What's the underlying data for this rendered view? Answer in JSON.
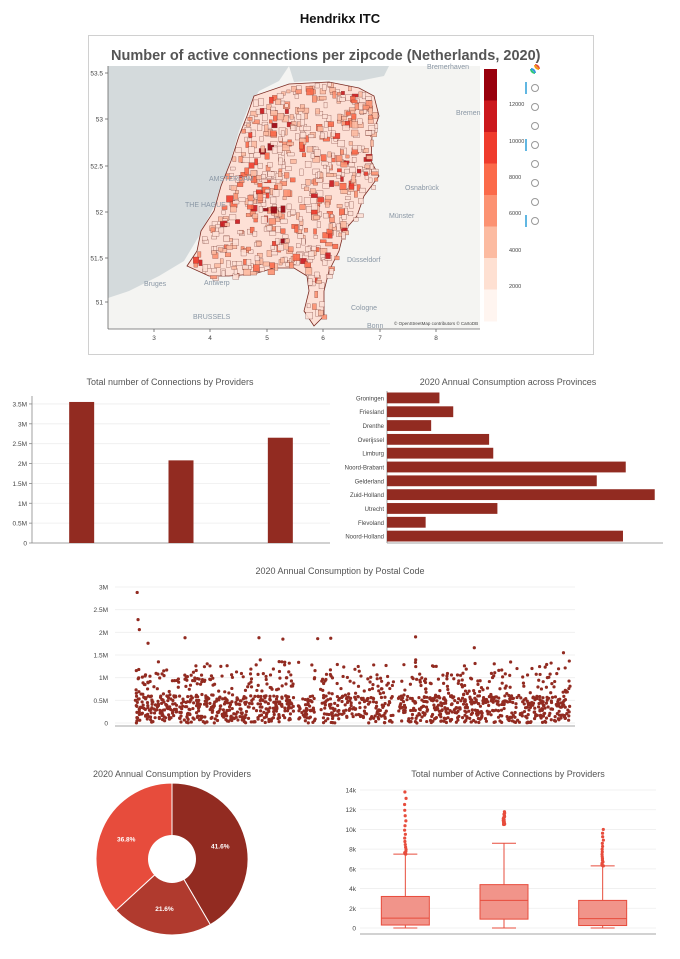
{
  "dashboard": {
    "title": "Hendrikx ITC"
  },
  "map": {
    "title": "Number of active connections per zipcode (Netherlands, 2020)",
    "x_ticks": [
      "3",
      "4",
      "5",
      "6",
      "7",
      "8"
    ],
    "y_ticks": [
      "53.5",
      "53",
      "52.5",
      "52",
      "51.5",
      "51"
    ],
    "colorbar_ticks": [
      "12000",
      "10000",
      "8000",
      "6000",
      "4000",
      "2000"
    ],
    "colorbar_colors": [
      "#99000d",
      "#cb181d",
      "#ef3b2c",
      "#fb6a4a",
      "#fc9272",
      "#fcbba1",
      "#fee0d2",
      "#fff5f0"
    ],
    "attribution": "© OpenStreetMap contributors © CartoDB",
    "labels": {
      "bremerhaven": "Bremerhaven",
      "bremen": "Bremen",
      "amsterdam": "AMSTERDAM",
      "the_hague": "THE HAGUE",
      "osnabruck": "Osnabrück",
      "munster": "Münster",
      "dusseldorf": "Düsseldorf",
      "cologne": "Cologne",
      "antwerp": "Antwerp",
      "bruges": "Bruges",
      "brussels": "BRUSSELS",
      "bonn": "Bonn"
    },
    "toolbar_tools": [
      "logo-icon",
      "pan-icon",
      "box-zoom-icon",
      "lasso-icon",
      "wheel-zoom-icon",
      "reset-icon",
      "zoom-in-icon",
      "zoom-out-icon",
      "hover-icon"
    ]
  },
  "chart_data": [
    {
      "type": "bar",
      "title": "Total number of Connections by Providers",
      "categories": [
        "",
        "",
        ""
      ],
      "values": [
        3550000,
        2080000,
        2650000
      ],
      "ylim": [
        0,
        3700000
      ],
      "y_ticks": [
        "0",
        "0.5M",
        "1M",
        "1.5M",
        "2M",
        "2.5M",
        "3M",
        "3.5M"
      ],
      "y_tick_values": [
        0,
        500000,
        1000000,
        1500000,
        2000000,
        2500000,
        3000000,
        3500000
      ],
      "color": "#922b21"
    },
    {
      "type": "bar",
      "orientation": "horizontal",
      "title": "2020 Annual Consumption across Provinces",
      "categories": [
        "Groningen",
        "Friesland",
        "Drenthe",
        "Overijssel",
        "Limburg",
        "Noord-Brabant",
        "Gelderland",
        "Zuid-Holland",
        "Utrecht",
        "Flevoland",
        "Noord-Holland"
      ],
      "values": [
        0.19,
        0.24,
        0.16,
        0.37,
        0.385,
        0.865,
        0.76,
        0.97,
        0.4,
        0.14,
        0.855
      ],
      "color": "#922b21"
    },
    {
      "type": "scatter",
      "title": "2020 Annual Consumption by Postal Code",
      "y_ticks": [
        "0",
        "0.5M",
        "1M",
        "1.5M",
        "2M",
        "2.5M",
        "3M"
      ],
      "y_tick_values": [
        0,
        500000,
        1000000,
        1500000,
        2000000,
        2500000,
        3000000
      ],
      "ylim": [
        0,
        3000000
      ],
      "outliers": [
        {
          "x": 0.005,
          "y": 2880000
        },
        {
          "x": 0.007,
          "y": 2280000
        },
        {
          "x": 0.01,
          "y": 2060000
        },
        {
          "x": 0.03,
          "y": 1760000
        },
        {
          "x": 0.115,
          "y": 1880000
        },
        {
          "x": 0.285,
          "y": 1880000
        },
        {
          "x": 0.34,
          "y": 1850000
        },
        {
          "x": 0.42,
          "y": 1860000
        },
        {
          "x": 0.45,
          "y": 1870000
        },
        {
          "x": 0.645,
          "y": 1900000
        },
        {
          "x": 0.78,
          "y": 1660000
        },
        {
          "x": 0.985,
          "y": 1550000
        }
      ],
      "color": "#922b21"
    },
    {
      "type": "pie",
      "title": "2020 Annual Consumption by Providers",
      "values": [
        41.6,
        21.6,
        36.8
      ],
      "labels": [
        "41.6%",
        "21.6%",
        "36.8%"
      ],
      "colors": [
        "#922b21",
        "#b03a2e",
        "#e74c3c"
      ]
    },
    {
      "type": "box",
      "title": "Total number of Active Connections by Providers",
      "y_ticks": [
        "0",
        "2k",
        "4k",
        "6k",
        "8k",
        "10k",
        "12k",
        "14k"
      ],
      "y_tick_values": [
        0,
        2000,
        4000,
        6000,
        8000,
        10000,
        12000,
        14000
      ],
      "ylim": [
        0,
        14000
      ],
      "boxes": [
        {
          "min": 0,
          "q1": 300,
          "median": 1000,
          "q3": 3200,
          "max": 7500,
          "outlier_min": 7500,
          "outlier_max": 13800
        },
        {
          "min": 0,
          "q1": 900,
          "median": 2800,
          "q3": 4400,
          "max": 8600,
          "outlier_min": 10500,
          "outlier_max": 11800
        },
        {
          "min": 0,
          "q1": 250,
          "median": 950,
          "q3": 2800,
          "max": 6300,
          "outlier_min": 6300,
          "outlier_max": 10000
        }
      ],
      "color": "#f1948a",
      "line_color": "#e74c3c"
    }
  ]
}
